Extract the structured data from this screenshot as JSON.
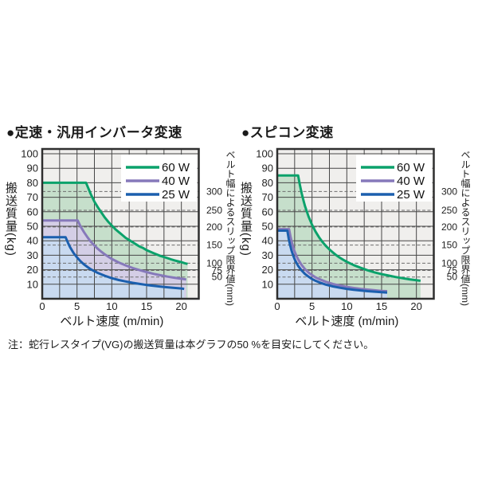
{
  "note": "注：蛇行レスタイプ(VG)の搬送質量は本グラフの50 %を目安にしてください。",
  "colors": {
    "plot_bg": "#f0efed",
    "grid": "#474747",
    "dashed": "#6e6e6e",
    "border": "#2f2f2f",
    "legend_bg": "#ffffff",
    "green_line": "#0ba26b",
    "purple_line": "#8679ba",
    "blue_line": "#1b5fae",
    "green_fill": "#c6dfcb",
    "purple_fill": "#d4cee6",
    "blue_fill": "#c9daf0"
  },
  "chart_data": [
    {
      "type": "line",
      "title": "●定速・汎用インバータ変速",
      "xlabel": "ベルト速度 (m/min)",
      "ylabel": "搬送質量(kg)",
      "right_axis_label": "ベルト幅によるスリップ限界値(mm)",
      "xlim": [
        0,
        22.5
      ],
      "ylim": [
        0,
        103.3
      ],
      "x_ticks": [
        0,
        5,
        10,
        15,
        20
      ],
      "x_grid_step": 2.5,
      "y_ticks": [
        10,
        20,
        30,
        40,
        50,
        60,
        70,
        80,
        90,
        100
      ],
      "grid": true,
      "legend_position": "top-right",
      "right_reference_lines": [
        {
          "label": "300",
          "y": 74
        },
        {
          "label": "250",
          "y": 61
        },
        {
          "label": "200",
          "y": 49.5
        },
        {
          "label": "150",
          "y": 37
        },
        {
          "label": "100",
          "y": 24.5
        },
        {
          "label": "75",
          "y": 19.5
        },
        {
          "label": "50",
          "y": 15
        }
      ],
      "series": [
        {
          "name": "60 W",
          "color": "green_line",
          "fill": "green_fill",
          "points": [
            [
              0,
              80
            ],
            [
              6.3,
              80
            ],
            [
              7,
              72
            ],
            [
              7.5,
              67
            ],
            [
              8,
              63
            ],
            [
              8.5,
              59.5
            ],
            [
              9,
              56
            ],
            [
              9.5,
              53
            ],
            [
              10,
              50.5
            ],
            [
              10.5,
              48
            ],
            [
              11,
              46
            ],
            [
              11.5,
              44
            ],
            [
              12,
              42
            ],
            [
              12.5,
              40.5
            ],
            [
              13,
              39
            ],
            [
              13.5,
              37.5
            ],
            [
              14,
              36
            ],
            [
              14.5,
              35
            ],
            [
              15,
              33.5
            ],
            [
              15.5,
              32.5
            ],
            [
              16,
              31.5
            ],
            [
              16.5,
              30.5
            ],
            [
              17,
              29.5
            ],
            [
              17.5,
              28.8
            ],
            [
              18,
              28
            ],
            [
              18.5,
              27.2
            ],
            [
              19,
              26.5
            ],
            [
              19.5,
              25.8
            ],
            [
              20,
              25.2
            ],
            [
              20.5,
              24.5
            ],
            [
              20.9,
              24
            ]
          ]
        },
        {
          "name": "40 W",
          "color": "purple_line",
          "fill": "purple_fill",
          "points": [
            [
              0,
              54
            ],
            [
              5.1,
              54
            ],
            [
              5.5,
              50
            ],
            [
              6,
              46
            ],
            [
              6.5,
              42.4
            ],
            [
              7,
              39.3
            ],
            [
              7.5,
              36.7
            ],
            [
              8,
              34.4
            ],
            [
              8.5,
              32.4
            ],
            [
              9,
              30.6
            ],
            [
              9.5,
              29
            ],
            [
              10,
              27.5
            ],
            [
              11,
              25
            ],
            [
              12,
              23
            ],
            [
              13,
              21.2
            ],
            [
              14,
              19.7
            ],
            [
              15,
              18.4
            ],
            [
              16,
              17.2
            ],
            [
              17,
              16.2
            ],
            [
              18,
              15.3
            ],
            [
              19,
              14.5
            ],
            [
              20,
              13.8
            ],
            [
              20.7,
              13.3
            ]
          ]
        },
        {
          "name": "25 W",
          "color": "blue_line",
          "fill": "blue_fill",
          "points": [
            [
              0,
              42.5
            ],
            [
              3.35,
              42.5
            ],
            [
              3.75,
              38
            ],
            [
              4,
              35.6
            ],
            [
              4.5,
              31.6
            ],
            [
              5,
              28.5
            ],
            [
              5.5,
              25.9
            ],
            [
              6,
              23.7
            ],
            [
              6.5,
              21.9
            ],
            [
              7,
              20.3
            ],
            [
              7.5,
              19
            ],
            [
              8,
              17.8
            ],
            [
              8.5,
              16.8
            ],
            [
              9,
              15.8
            ],
            [
              9.5,
              15
            ],
            [
              10,
              14.2
            ],
            [
              11,
              12.9
            ],
            [
              12,
              11.9
            ],
            [
              13,
              11
            ],
            [
              14,
              10.2
            ],
            [
              15,
              9.5
            ],
            [
              16,
              8.9
            ],
            [
              17,
              8.4
            ],
            [
              18,
              7.9
            ],
            [
              19,
              7.5
            ],
            [
              20,
              7.1
            ],
            [
              20.4,
              6.8
            ]
          ]
        }
      ]
    },
    {
      "type": "line",
      "title": "●スピコン変速",
      "xlabel": "ベルト速度 (m/min)",
      "ylabel": "搬送質量(kg)",
      "right_axis_label": "ベルト幅によるスリップ限界値(mm)",
      "xlim": [
        0,
        22.5
      ],
      "ylim": [
        0,
        103.3
      ],
      "x_ticks": [
        0,
        5,
        10,
        15,
        20
      ],
      "x_grid_step": 2.5,
      "y_ticks": [
        10,
        20,
        30,
        40,
        50,
        60,
        70,
        80,
        90,
        100
      ],
      "grid": true,
      "legend_position": "top-right",
      "right_reference_lines": [
        {
          "label": "300",
          "y": 74
        },
        {
          "label": "250",
          "y": 61
        },
        {
          "label": "200",
          "y": 49.5
        },
        {
          "label": "150",
          "y": 37
        },
        {
          "label": "100",
          "y": 24.5
        },
        {
          "label": "75",
          "y": 19.5
        },
        {
          "label": "50",
          "y": 15
        }
      ],
      "series": [
        {
          "name": "60 W",
          "color": "green_line",
          "fill": "green_fill",
          "points": [
            [
              0,
              85
            ],
            [
              3,
              85
            ],
            [
              3.25,
              78.5
            ],
            [
              3.5,
              72.9
            ],
            [
              3.75,
              68
            ],
            [
              4,
              63.8
            ],
            [
              4.5,
              56.7
            ],
            [
              5,
              51
            ],
            [
              5.5,
              46.4
            ],
            [
              6,
              42.5
            ],
            [
              6.5,
              39.2
            ],
            [
              7,
              36.4
            ],
            [
              7.5,
              34
            ],
            [
              8,
              31.9
            ],
            [
              8.5,
              30
            ],
            [
              9,
              28.3
            ],
            [
              9.5,
              26.8
            ],
            [
              10,
              25.5
            ],
            [
              11,
              23.2
            ],
            [
              12,
              21.3
            ],
            [
              13,
              19.6
            ],
            [
              14,
              18.2
            ],
            [
              15,
              17
            ],
            [
              16,
              16
            ],
            [
              17,
              15
            ],
            [
              18,
              14.2
            ],
            [
              19,
              13.4
            ],
            [
              20,
              12.8
            ],
            [
              20.6,
              12.4
            ]
          ]
        },
        {
          "name": "40 W",
          "color": "purple_line",
          "fill": "purple_fill",
          "points": [
            [
              0,
              48
            ],
            [
              1.7,
              48
            ],
            [
              1.9,
              43
            ],
            [
              2.1,
              38.9
            ],
            [
              2.3,
              35.5
            ],
            [
              2.5,
              32.6
            ],
            [
              2.75,
              29.7
            ],
            [
              3,
              27.2
            ],
            [
              3.5,
              23.3
            ],
            [
              4,
              20.4
            ],
            [
              4.5,
              18.1
            ],
            [
              5,
              16.3
            ],
            [
              5.5,
              14.8
            ],
            [
              6,
              13.6
            ],
            [
              7,
              11.7
            ],
            [
              8,
              10.2
            ],
            [
              9,
              9.1
            ],
            [
              10,
              8.2
            ],
            [
              11,
              7.4
            ],
            [
              12,
              6.8
            ],
            [
              13,
              6.3
            ],
            [
              14,
              5.8
            ],
            [
              15,
              5.4
            ],
            [
              15.8,
              5.2
            ]
          ]
        },
        {
          "name": "25 W",
          "color": "blue_line",
          "fill": "blue_fill",
          "points": [
            [
              0,
              47
            ],
            [
              1.45,
              47
            ],
            [
              1.65,
              41.3
            ],
            [
              1.85,
              36.9
            ],
            [
              2.05,
              33.3
            ],
            [
              2.3,
              29.7
            ],
            [
              2.55,
              26.7
            ],
            [
              2.8,
              24.4
            ],
            [
              3,
              22.7
            ],
            [
              3.5,
              19.5
            ],
            [
              4,
              17.1
            ],
            [
              4.5,
              15.2
            ],
            [
              5,
              13.6
            ],
            [
              5.5,
              12.4
            ],
            [
              6,
              11.4
            ],
            [
              7,
              9.7
            ],
            [
              8,
              8.5
            ],
            [
              9,
              7.6
            ],
            [
              10,
              6.8
            ],
            [
              11,
              6.2
            ],
            [
              12,
              5.7
            ],
            [
              13,
              5.2
            ],
            [
              14,
              4.9
            ],
            [
              15,
              4.5
            ],
            [
              15.8,
              4.3
            ]
          ]
        }
      ]
    }
  ]
}
